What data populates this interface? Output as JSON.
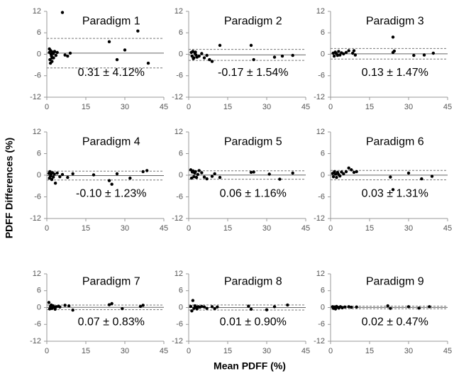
{
  "axis_labels": {
    "x": "Mean PDFF (%)",
    "y": "PDFF Differences (%)"
  },
  "chart_data": [
    {
      "type": "scatter",
      "title": "Paradigm 1",
      "annotation": "0.31 ± 4.12%",
      "color": "#000000",
      "xlim": [
        0,
        45
      ],
      "ylim": [
        -12,
        12
      ],
      "xticks": [
        0,
        15,
        30,
        45
      ],
      "yticks": [
        -12,
        -6,
        0,
        6,
        12
      ],
      "mean_line": 0.31,
      "limits_of_agreement": [
        -3.81,
        4.43
      ],
      "x": [
        1,
        1.2,
        1.5,
        1.8,
        2,
        2.3,
        2.6,
        3,
        1,
        1.4,
        2,
        2.5,
        3.5,
        4,
        6,
        7,
        8,
        9,
        24,
        27,
        30,
        35,
        39,
        1.6,
        2.2
      ],
      "y": [
        0.5,
        -1.5,
        1,
        -0.5,
        -2,
        0.3,
        -1,
        0.8,
        1.5,
        -2.5,
        -1,
        0.2,
        -0.3,
        0.5,
        11.7,
        -0.2,
        -0.5,
        0.3,
        3.5,
        -1.5,
        1.2,
        6.5,
        -2.5,
        0,
        0.6
      ]
    },
    {
      "type": "scatter",
      "title": "Paradigm 2",
      "annotation": "-0.17 ± 1.54%",
      "color": "#000000",
      "xlim": [
        0,
        45
      ],
      "ylim": [
        -12,
        12
      ],
      "xticks": [
        0,
        15,
        30,
        45
      ],
      "yticks": [
        -12,
        -6,
        0,
        6,
        12
      ],
      "mean_line": -0.17,
      "limits_of_agreement": [
        -1.71,
        1.37
      ],
      "x": [
        1,
        1.3,
        1.6,
        2,
        2.4,
        2.8,
        3.2,
        4,
        5,
        6,
        7,
        8,
        9,
        12,
        24,
        25,
        33,
        36,
        40,
        1.8,
        2.6
      ],
      "y": [
        0.5,
        -0.5,
        0.8,
        -1,
        0.3,
        -0.2,
        -0.8,
        -0.5,
        0.2,
        -1,
        -0.3,
        -1.5,
        -2,
        2.5,
        2.5,
        -1.5,
        -0.8,
        -0.5,
        -0.3,
        -1.2,
        0.6
      ]
    },
    {
      "type": "scatter",
      "title": "Paradigm 3",
      "annotation": "0.13 ± 1.47%",
      "color": "#000000",
      "xlim": [
        0,
        45
      ],
      "ylim": [
        -12,
        12
      ],
      "xticks": [
        0,
        15,
        30,
        45
      ],
      "yticks": [
        -12,
        -6,
        0,
        6,
        12
      ],
      "mean_line": 0.13,
      "limits_of_agreement": [
        -1.34,
        1.6
      ],
      "x": [
        1,
        1.4,
        1.8,
        2.2,
        2.7,
        3.1,
        3.6,
        4.2,
        5,
        6,
        7,
        8.5,
        9,
        9.5,
        24,
        24,
        24.5,
        32,
        36,
        39.5
      ],
      "y": [
        0.3,
        -0.5,
        0.6,
        0.2,
        -0.3,
        0.8,
        -0.2,
        0.4,
        0.1,
        0.5,
        1,
        0.3,
        1,
        -0.2,
        4.8,
        0.5,
        0.9,
        -0.3,
        -0.2,
        0.3
      ]
    },
    {
      "type": "scatter",
      "title": "Paradigm 4",
      "annotation": "-0.10 ± 1.23%",
      "color": "#000000",
      "xlim": [
        0,
        45
      ],
      "ylim": [
        -12,
        12
      ],
      "xticks": [
        0,
        15,
        30,
        45
      ],
      "yticks": [
        -12,
        -6,
        0,
        6,
        12
      ],
      "mean_line": -0.1,
      "limits_of_agreement": [
        -1.33,
        1.13
      ],
      "x": [
        0.8,
        1,
        1.2,
        1.4,
        1.6,
        1.9,
        2.2,
        2.5,
        2.9,
        3.3,
        4,
        5,
        6,
        8,
        10,
        18,
        24,
        25,
        27,
        32,
        37,
        38.5
      ],
      "y": [
        0.5,
        -0.8,
        1,
        -0.3,
        0.2,
        -1.2,
        0.7,
        -0.5,
        0.3,
        -2.2,
        0.6,
        -0.4,
        0.2,
        -0.6,
        0.4,
        0.1,
        -1.5,
        -2.5,
        0.4,
        -0.8,
        1,
        1.3
      ]
    },
    {
      "type": "scatter",
      "title": "Paradigm 5",
      "annotation": "0.06 ± 1.16%",
      "color": "#000000",
      "xlim": [
        0,
        45
      ],
      "ylim": [
        -12,
        12
      ],
      "xticks": [
        0,
        15,
        30,
        45
      ],
      "yticks": [
        -12,
        -6,
        0,
        6,
        12
      ],
      "mean_line": 0.06,
      "limits_of_agreement": [
        -1.1,
        1.22
      ],
      "x": [
        0.8,
        1.1,
        1.4,
        1.7,
        2,
        2.3,
        2.6,
        3,
        3.5,
        4,
        5,
        6,
        7,
        9,
        10,
        12,
        24,
        25,
        31,
        35,
        40
      ],
      "y": [
        1.5,
        -0.8,
        0.9,
        1.2,
        -0.4,
        0.6,
        1,
        -0.6,
        0.2,
        1.3,
        0.7,
        -0.5,
        -1,
        -0.3,
        0.4,
        -0.6,
        0.8,
        0.9,
        0.3,
        -1.1,
        0.6
      ]
    },
    {
      "type": "scatter",
      "title": "Paradigm 6",
      "annotation": "0.03 ± 1.31%",
      "color": "#000000",
      "xlim": [
        0,
        45
      ],
      "ylim": [
        -12,
        12
      ],
      "xticks": [
        0,
        15,
        30,
        45
      ],
      "yticks": [
        -12,
        -6,
        0,
        6,
        12
      ],
      "mean_line": 0.03,
      "limits_of_agreement": [
        -1.28,
        1.34
      ],
      "x": [
        0.8,
        1.1,
        1.5,
        1.9,
        2.3,
        2.7,
        3.1,
        3.6,
        4.2,
        5,
        6,
        7,
        8,
        9,
        10,
        23,
        24,
        30,
        35,
        39
      ],
      "y": [
        0.5,
        -0.4,
        1,
        0.3,
        -0.6,
        0.8,
        0.2,
        -0.2,
        0.9,
        0.4,
        1,
        2,
        1.5,
        0.8,
        1,
        -0.5,
        -4,
        0.6,
        -1,
        -0.3
      ]
    },
    {
      "type": "scatter",
      "title": "Paradigm 7",
      "annotation": "0.07 ± 0.83%",
      "color": "#000000",
      "xlim": [
        0,
        45
      ],
      "ylim": [
        -12,
        12
      ],
      "xticks": [
        0,
        15,
        30,
        45
      ],
      "yticks": [
        -12,
        -6,
        0,
        6,
        12
      ],
      "mean_line": 0.07,
      "limits_of_agreement": [
        -0.76,
        0.9
      ],
      "x": [
        0.8,
        1.1,
        1.4,
        1.7,
        2,
        2.4,
        2.8,
        3.2,
        3.7,
        4.5,
        5,
        7,
        8.5,
        10,
        24,
        25,
        29,
        36,
        37
      ],
      "y": [
        1.8,
        -0.5,
        0.5,
        0.9,
        -0.3,
        0.6,
        0.2,
        -0.6,
        0.3,
        0.5,
        0.2,
        0.8,
        0.6,
        -0.9,
        1,
        1.4,
        -0.4,
        0.4,
        0.8
      ]
    },
    {
      "type": "scatter",
      "title": "Paradigm 8",
      "annotation": "0.01 ± 0.90%",
      "color": "#000000",
      "xlim": [
        0,
        45
      ],
      "ylim": [
        -12,
        12
      ],
      "xticks": [
        0,
        15,
        30,
        45
      ],
      "yticks": [
        -12,
        -6,
        0,
        6,
        12
      ],
      "mean_line": 0.01,
      "limits_of_agreement": [
        -0.89,
        0.91
      ],
      "x": [
        0.8,
        1.2,
        1.6,
        2,
        2.4,
        2.8,
        3.2,
        3.7,
        4.3,
        5,
        6,
        7,
        9,
        10,
        11,
        23,
        24,
        30,
        33,
        38
      ],
      "y": [
        0.4,
        -1.2,
        2.5,
        -0.3,
        0.6,
        0.2,
        -0.5,
        0.3,
        0.1,
        0.4,
        0.2,
        -0.3,
        0.3,
        -0.4,
        0.2,
        0.5,
        -0.6,
        -0.8,
        0.3,
        0.9
      ]
    },
    {
      "type": "scatter",
      "title": "Paradigm 9",
      "annotation": "0.02 ± 0.47%",
      "color": "#000000",
      "xlim": [
        0,
        45
      ],
      "ylim": [
        -12,
        12
      ],
      "xticks": [
        0,
        15,
        30,
        45
      ],
      "yticks": [
        -12,
        -6,
        0,
        6,
        12
      ],
      "mean_line": 0.02,
      "limits_of_agreement": [
        -0.45,
        0.49
      ],
      "x": [
        0.8,
        1.1,
        1.5,
        1.9,
        2.3,
        2.7,
        3.2,
        3.8,
        4.5,
        5.5,
        7,
        8,
        10,
        22,
        23,
        30,
        34,
        38
      ],
      "y": [
        0.3,
        -0.3,
        0.2,
        -0.5,
        0.4,
        0.1,
        -0.2,
        0.3,
        -0.1,
        0.2,
        0.3,
        0.1,
        0.2,
        0.6,
        -0.3,
        0.3,
        -0.2,
        0.3
      ]
    }
  ]
}
